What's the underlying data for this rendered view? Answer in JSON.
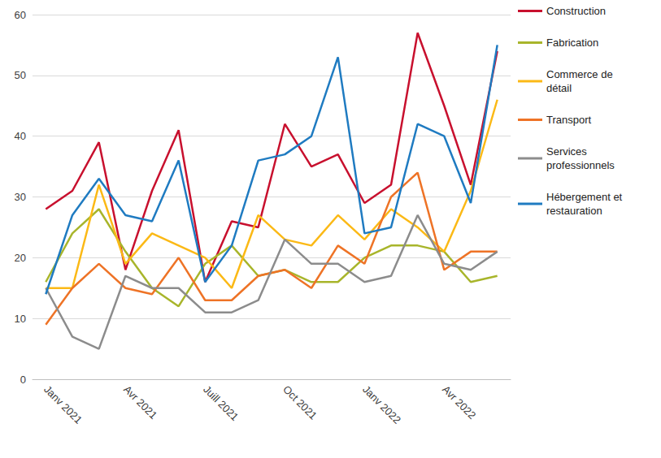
{
  "chart_data": {
    "type": "line",
    "categories": [
      "Janv 2021",
      null,
      null,
      "Avr 2021",
      null,
      null,
      "Juill 2021",
      null,
      null,
      "Oct 2021",
      null,
      null,
      "Janv 2022",
      null,
      null,
      "Avr 2022",
      null,
      null
    ],
    "series": [
      {
        "name": "Construction",
        "color": "#c8102e",
        "values": [
          28,
          31,
          39,
          18,
          31,
          41,
          16,
          26,
          25,
          42,
          35,
          37,
          29,
          32,
          57,
          45,
          32,
          54
        ]
      },
      {
        "name": "Fabrication",
        "color": "#a8b52b",
        "values": [
          16,
          24,
          28,
          21,
          15,
          12,
          19,
          22,
          17,
          18,
          16,
          16,
          20,
          22,
          22,
          21,
          16,
          17
        ]
      },
      {
        "name": "Commerce de détail",
        "color": "#fbb916",
        "values": [
          15,
          15,
          32,
          19,
          24,
          22,
          20,
          15,
          27,
          23,
          22,
          27,
          23,
          28,
          25,
          21,
          31,
          46
        ]
      },
      {
        "name": "Transport",
        "color": "#ee7326",
        "values": [
          9,
          15,
          19,
          15,
          14,
          20,
          13,
          13,
          17,
          18,
          15,
          22,
          19,
          30,
          34,
          18,
          21,
          21
        ]
      },
      {
        "name": "Services professionnels",
        "color": "#8c8c8c",
        "values": [
          15,
          7,
          5,
          17,
          15,
          15,
          11,
          11,
          13,
          23,
          19,
          19,
          16,
          17,
          27,
          19,
          18,
          21
        ]
      },
      {
        "name": "Hébergement et restauration",
        "color": "#1f7bc1",
        "values": [
          14,
          27,
          33,
          27,
          26,
          36,
          16,
          22,
          36,
          37,
          40,
          53,
          24,
          25,
          42,
          40,
          29,
          55
        ]
      }
    ],
    "ylim": [
      0,
      60
    ],
    "yticks": [
      0,
      10,
      20,
      30,
      40,
      50,
      60
    ],
    "grid": true,
    "legend": "right"
  }
}
